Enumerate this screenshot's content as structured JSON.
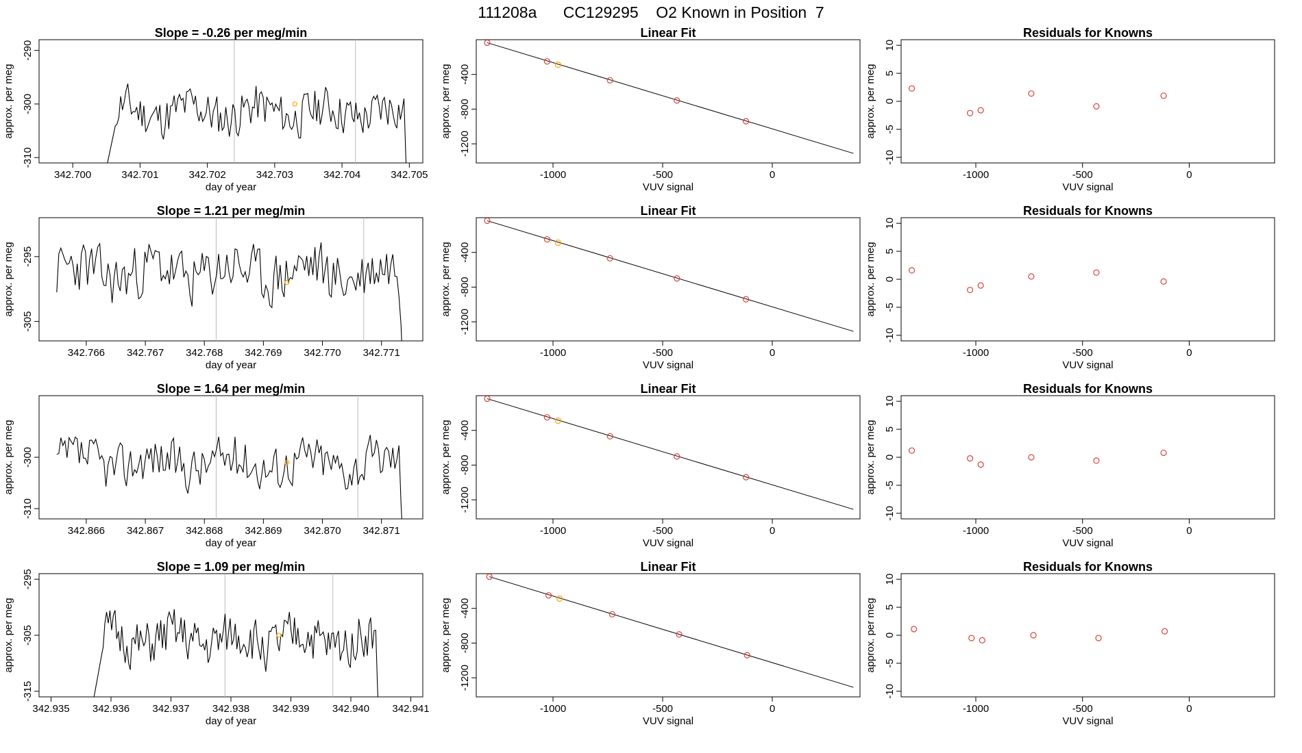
{
  "page_title": "111208a      CC129295    O2 Known in Position  7",
  "colors": {
    "series": "#000000",
    "known_point": "#d7433a",
    "highlight_point": "#ffa500",
    "marker_line": "#bbbbbb"
  },
  "chart_data": [
    {
      "type": "line",
      "title_prefix": "Slope = ",
      "slope": "-0.26",
      "title_suffix": " per meg/min",
      "xlabel": "day of year",
      "ylabel": "approx. per meg",
      "xlim": [
        342.6995,
        342.7052
      ],
      "ylim": [
        -311,
        -288
      ],
      "xticks": [
        "342.700",
        "342.701",
        "342.702",
        "342.703",
        "342.704",
        "342.705"
      ],
      "yticks": [
        "-290",
        "-300",
        "-310"
      ],
      "series_start": 342.7005,
      "series_end": 342.705,
      "vlines": [
        342.7024,
        342.7042
      ],
      "highlight": {
        "x": 342.7033,
        "y": -300
      },
      "seed": 11,
      "base": -301.5,
      "amp": 3.8,
      "start_dip": true,
      "end_dip": true
    },
    {
      "type": "scatter",
      "title": "Linear Fit",
      "xlabel": "VUV signal",
      "ylabel": "approx. per meg",
      "xlim": [
        -1350,
        400
      ],
      "ylim": [
        -1420,
        0
      ],
      "xticks": [
        "-1000",
        "-500",
        "0"
      ],
      "yticks": [
        "-400",
        "-800",
        "-1200"
      ],
      "fit_line": {
        "x1": -1300,
        "y1": -35,
        "x2": 370,
        "y2": -1310
      },
      "points": [
        [
          -1300,
          -35
        ],
        [
          -1027,
          -250
        ],
        [
          -977,
          -288
        ],
        [
          -740,
          -468
        ],
        [
          -435,
          -700
        ],
        [
          -120,
          -940
        ]
      ],
      "highlight_index": 2
    },
    {
      "type": "scatter",
      "title": "Residuals for Knowns",
      "xlabel": "VUV signal",
      "ylabel": "approx. per meg",
      "xlim": [
        -1350,
        400
      ],
      "ylim": [
        -11,
        11
      ],
      "xticks": [
        "-1000",
        "-500",
        "0"
      ],
      "yticks": [
        "10",
        "5",
        "0",
        "-5",
        "-10"
      ],
      "points": [
        [
          -1300,
          2.3
        ],
        [
          -1027,
          -2.1
        ],
        [
          -977,
          -1.6
        ],
        [
          -740,
          1.4
        ],
        [
          -435,
          -0.9
        ],
        [
          -120,
          1.0
        ]
      ]
    },
    {
      "type": "line",
      "title_prefix": "Slope = ",
      "slope": "1.21",
      "title_suffix": " per meg/min",
      "xlabel": "day of year",
      "ylabel": "approx. per meg",
      "xlim": [
        342.7652,
        342.7717
      ],
      "ylim": [
        -308,
        -289
      ],
      "xticks": [
        "342.766",
        "342.767",
        "342.768",
        "342.769",
        "342.770",
        "342.771"
      ],
      "yticks": [
        "-295",
        "-305"
      ],
      "series_start": 342.7655,
      "series_end": 342.7714,
      "vlines": [
        342.7682,
        342.7707
      ],
      "highlight": {
        "x": 342.7694,
        "y": -299
      },
      "seed": 23,
      "base": -297.5,
      "amp": 4.0,
      "start_dip": false,
      "end_dip": true
    },
    {
      "type": "scatter",
      "title": "Linear Fit",
      "xlabel": "VUV signal",
      "ylabel": "approx. per meg",
      "xlim": [
        -1350,
        400
      ],
      "ylim": [
        -1420,
        0
      ],
      "xticks": [
        "-1000",
        "-500",
        "0"
      ],
      "yticks": [
        "-400",
        "-800",
        "-1200"
      ],
      "fit_line": {
        "x1": -1300,
        "y1": -35,
        "x2": 370,
        "y2": -1310
      },
      "points": [
        [
          -1300,
          -35
        ],
        [
          -1027,
          -250
        ],
        [
          -977,
          -288
        ],
        [
          -740,
          -468
        ],
        [
          -435,
          -700
        ],
        [
          -120,
          -940
        ]
      ],
      "highlight_index": 2
    },
    {
      "type": "scatter",
      "title": "Residuals for Knowns",
      "xlabel": "VUV signal",
      "ylabel": "approx. per meg",
      "xlim": [
        -1350,
        400
      ],
      "ylim": [
        -11,
        11
      ],
      "xticks": [
        "-1000",
        "-500",
        "0"
      ],
      "yticks": [
        "10",
        "5",
        "0",
        "-5",
        "-10"
      ],
      "points": [
        [
          -1300,
          1.6
        ],
        [
          -1027,
          -1.9
        ],
        [
          -977,
          -1.1
        ],
        [
          -740,
          0.5
        ],
        [
          -435,
          1.2
        ],
        [
          -120,
          -0.4
        ]
      ]
    },
    {
      "type": "line",
      "title_prefix": "Slope = ",
      "slope": "1.64",
      "title_suffix": " per meg/min",
      "xlabel": "day of year",
      "ylabel": "approx. per meg",
      "xlim": [
        342.8652,
        342.8717
      ],
      "ylim": [
        -312,
        -288
      ],
      "xticks": [
        "342.866",
        "342.867",
        "342.868",
        "342.869",
        "342.870",
        "342.871"
      ],
      "yticks": [
        "-300",
        "-310"
      ],
      "series_start": 342.8655,
      "series_end": 342.8714,
      "vlines": [
        342.8682,
        342.8706
      ],
      "highlight": {
        "x": 342.8694,
        "y": -301
      },
      "seed": 37,
      "base": -301,
      "amp": 4.2,
      "start_dip": false,
      "end_dip": true
    },
    {
      "type": "scatter",
      "title": "Linear Fit",
      "xlabel": "VUV signal",
      "ylabel": "approx. per meg",
      "xlim": [
        -1350,
        400
      ],
      "ylim": [
        -1420,
        0
      ],
      "xticks": [
        "-1000",
        "-500",
        "0"
      ],
      "yticks": [
        "-400",
        "-800",
        "-1200"
      ],
      "fit_line": {
        "x1": -1300,
        "y1": -35,
        "x2": 370,
        "y2": -1310
      },
      "points": [
        [
          -1300,
          -35
        ],
        [
          -1027,
          -250
        ],
        [
          -977,
          -288
        ],
        [
          -740,
          -468
        ],
        [
          -435,
          -700
        ],
        [
          -120,
          -940
        ]
      ],
      "highlight_index": 2
    },
    {
      "type": "scatter",
      "title": "Residuals for Knowns",
      "xlabel": "VUV signal",
      "ylabel": "approx. per meg",
      "xlim": [
        -1350,
        400
      ],
      "ylim": [
        -11,
        11
      ],
      "xticks": [
        "-1000",
        "-500",
        "0"
      ],
      "yticks": [
        "10",
        "5",
        "0",
        "-5",
        "-10"
      ],
      "points": [
        [
          -1300,
          1.2
        ],
        [
          -1027,
          -0.2
        ],
        [
          -977,
          -1.3
        ],
        [
          -740,
          0.0
        ],
        [
          -435,
          -0.6
        ],
        [
          -120,
          0.8
        ]
      ]
    },
    {
      "type": "line",
      "title_prefix": "Slope = ",
      "slope": "1.09",
      "title_suffix": " per meg/min",
      "xlabel": "day of year",
      "ylabel": "approx. per meg",
      "xlim": [
        342.9348,
        342.9412
      ],
      "ylim": [
        -316,
        -294
      ],
      "xticks": [
        "342.935",
        "342.936",
        "342.937",
        "342.938",
        "342.939",
        "342.940",
        "342.941"
      ],
      "yticks": [
        "-295",
        "-305",
        "-315"
      ],
      "series_start": 342.9357,
      "series_end": 342.9405,
      "vlines": [
        342.9379,
        342.9397
      ],
      "highlight": {
        "x": 342.9388,
        "y": -305
      },
      "seed": 51,
      "base": -306,
      "amp": 4.0,
      "start_dip": true,
      "end_dip": true
    },
    {
      "type": "scatter",
      "title": "Linear Fit",
      "xlabel": "VUV signal",
      "ylabel": "approx. per meg",
      "xlim": [
        -1350,
        400
      ],
      "ylim": [
        -1420,
        0
      ],
      "xticks": [
        "-1000",
        "-500",
        "0"
      ],
      "yticks": [
        "-400",
        "-800",
        "-1200"
      ],
      "fit_line": {
        "x1": -1290,
        "y1": -35,
        "x2": 370,
        "y2": -1310
      },
      "points": [
        [
          -1290,
          -35
        ],
        [
          -1020,
          -250
        ],
        [
          -970,
          -288
        ],
        [
          -730,
          -468
        ],
        [
          -425,
          -700
        ],
        [
          -115,
          -940
        ]
      ],
      "highlight_index": 2
    },
    {
      "type": "scatter",
      "title": "Residuals for Knowns",
      "xlabel": "VUV signal",
      "ylabel": "approx. per meg",
      "xlim": [
        -1350,
        400
      ],
      "ylim": [
        -11,
        11
      ],
      "xticks": [
        "-1000",
        "-500",
        "0"
      ],
      "yticks": [
        "10",
        "5",
        "0",
        "-5",
        "-10"
      ],
      "points": [
        [
          -1290,
          1.1
        ],
        [
          -1020,
          -0.5
        ],
        [
          -970,
          -0.9
        ],
        [
          -730,
          0.0
        ],
        [
          -425,
          -0.5
        ],
        [
          -115,
          0.7
        ]
      ]
    }
  ]
}
